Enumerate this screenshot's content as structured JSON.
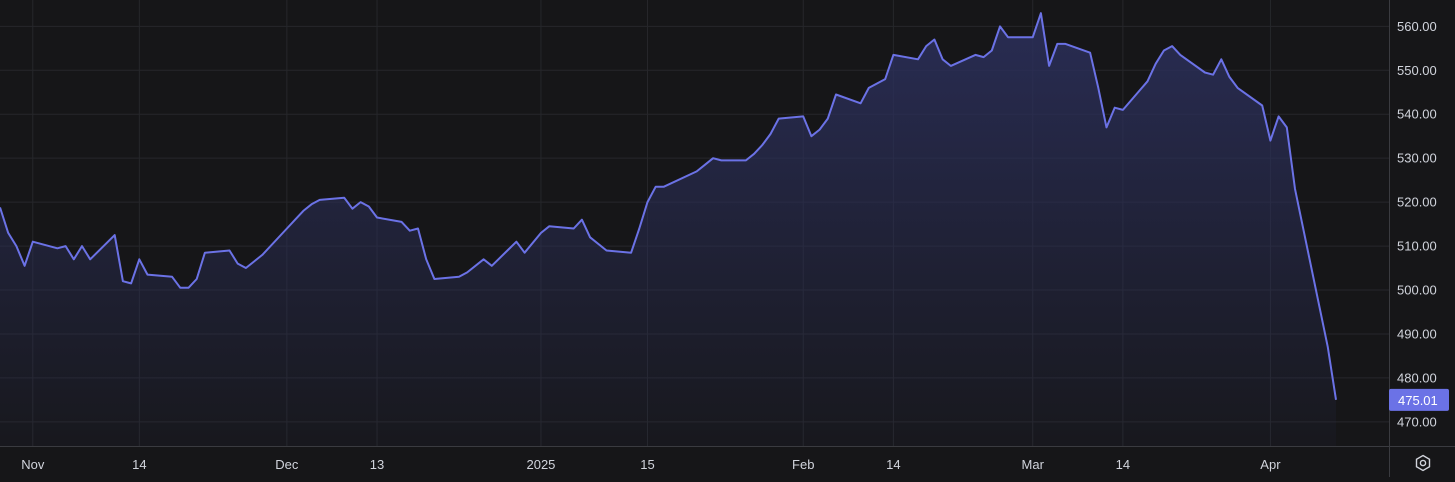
{
  "colors": {
    "background": "#161618",
    "grid": "#26272b",
    "line": "#6b72e6",
    "area_top": "#2b2f5a",
    "axis_text": "#d1d4dc",
    "last_price_badge_bg": "#6b72e6",
    "last_price_badge_text": "#ffffff"
  },
  "icons": {
    "settings": "settings-icon"
  },
  "chart_data": {
    "type": "area",
    "title": "",
    "xlabel": "",
    "ylabel": "",
    "grid": true,
    "y_axis_position": "right",
    "ylim": [
      464.5,
      566.0
    ],
    "xlim": [
      "2024-10-28",
      "2025-04-10"
    ],
    "x_tick_labels": [
      {
        "label": "Nov",
        "date": "2024-11-01"
      },
      {
        "label": "14",
        "date": "2024-11-14"
      },
      {
        "label": "Dec",
        "date": "2024-12-02"
      },
      {
        "label": "13",
        "date": "2024-12-13"
      },
      {
        "label": "2025",
        "date": "2025-01-02"
      },
      {
        "label": "15",
        "date": "2025-01-15"
      },
      {
        "label": "Feb",
        "date": "2025-02-03"
      },
      {
        "label": "14",
        "date": "2025-02-14"
      },
      {
        "label": "Mar",
        "date": "2025-03-03"
      },
      {
        "label": "14",
        "date": "2025-03-14"
      },
      {
        "label": "Apr",
        "date": "2025-04-01"
      }
    ],
    "y_tick_labels": [
      "560.00",
      "550.00",
      "540.00",
      "530.00",
      "520.00",
      "510.00",
      "500.00",
      "490.00",
      "480.00",
      "470.00"
    ],
    "y_ticks": [
      560,
      550,
      540,
      530,
      520,
      510,
      500,
      490,
      480,
      470
    ],
    "last_value_label": "475.01",
    "series": [
      {
        "points": [
          [
            "2024-10-28",
            518.8
          ],
          [
            "2024-10-29",
            513.0
          ],
          [
            "2024-10-30",
            510.0
          ],
          [
            "2024-10-31",
            505.5
          ],
          [
            "2024-11-01",
            511.0
          ],
          [
            "2024-11-04",
            509.5
          ],
          [
            "2024-11-05",
            510.0
          ],
          [
            "2024-11-06",
            507.0
          ],
          [
            "2024-11-07",
            510.0
          ],
          [
            "2024-11-08",
            507.0
          ],
          [
            "2024-11-11",
            512.5
          ],
          [
            "2024-11-12",
            502.0
          ],
          [
            "2024-11-13",
            501.5
          ],
          [
            "2024-11-14",
            507.0
          ],
          [
            "2024-11-15",
            503.5
          ],
          [
            "2024-11-18",
            503.0
          ],
          [
            "2024-11-19",
            500.5
          ],
          [
            "2024-11-20",
            500.5
          ],
          [
            "2024-11-21",
            502.5
          ],
          [
            "2024-11-22",
            508.5
          ],
          [
            "2024-11-25",
            509.0
          ],
          [
            "2024-11-26",
            506.0
          ],
          [
            "2024-11-27",
            505.0
          ],
          [
            "2024-11-29",
            508.0
          ],
          [
            "2024-12-02",
            514.0
          ],
          [
            "2024-12-03",
            516.0
          ],
          [
            "2024-12-04",
            518.0
          ],
          [
            "2024-12-05",
            519.5
          ],
          [
            "2024-12-06",
            520.5
          ],
          [
            "2024-12-09",
            521.0
          ],
          [
            "2024-12-10",
            518.5
          ],
          [
            "2024-12-11",
            520.0
          ],
          [
            "2024-12-12",
            519.0
          ],
          [
            "2024-12-13",
            516.5
          ],
          [
            "2024-12-16",
            515.5
          ],
          [
            "2024-12-17",
            513.5
          ],
          [
            "2024-12-18",
            514.0
          ],
          [
            "2024-12-19",
            507.0
          ],
          [
            "2024-12-20",
            502.5
          ],
          [
            "2024-12-23",
            503.0
          ],
          [
            "2024-12-24",
            504.0
          ],
          [
            "2024-12-26",
            507.0
          ],
          [
            "2024-12-27",
            505.5
          ],
          [
            "2024-12-30",
            511.0
          ],
          [
            "2024-12-31",
            508.5
          ],
          [
            "2025-01-02",
            513.0
          ],
          [
            "2025-01-03",
            514.5
          ],
          [
            "2025-01-06",
            514.0
          ],
          [
            "2025-01-07",
            516.0
          ],
          [
            "2025-01-08",
            512.0
          ],
          [
            "2025-01-10",
            509.0
          ],
          [
            "2025-01-13",
            508.5
          ],
          [
            "2025-01-14",
            514.0
          ],
          [
            "2025-01-15",
            520.0
          ],
          [
            "2025-01-16",
            523.5
          ],
          [
            "2025-01-17",
            523.5
          ],
          [
            "2025-01-21",
            527.0
          ],
          [
            "2025-01-22",
            528.5
          ],
          [
            "2025-01-23",
            530.0
          ],
          [
            "2025-01-24",
            529.5
          ],
          [
            "2025-01-27",
            529.5
          ],
          [
            "2025-01-28",
            531.0
          ],
          [
            "2025-01-29",
            533.0
          ],
          [
            "2025-01-30",
            535.5
          ],
          [
            "2025-01-31",
            539.0
          ],
          [
            "2025-02-03",
            539.5
          ],
          [
            "2025-02-04",
            535.0
          ],
          [
            "2025-02-05",
            536.5
          ],
          [
            "2025-02-06",
            539.0
          ],
          [
            "2025-02-07",
            544.5
          ],
          [
            "2025-02-10",
            542.5
          ],
          [
            "2025-02-11",
            546.0
          ],
          [
            "2025-02-12",
            547.0
          ],
          [
            "2025-02-13",
            548.0
          ],
          [
            "2025-02-14",
            553.5
          ],
          [
            "2025-02-17",
            552.5
          ],
          [
            "2025-02-18",
            555.5
          ],
          [
            "2025-02-19",
            557.0
          ],
          [
            "2025-02-20",
            552.5
          ],
          [
            "2025-02-21",
            551.0
          ],
          [
            "2025-02-24",
            553.5
          ],
          [
            "2025-02-25",
            553.0
          ],
          [
            "2025-02-26",
            554.5
          ],
          [
            "2025-02-27",
            560.0
          ],
          [
            "2025-02-28",
            557.5
          ],
          [
            "2025-03-03",
            557.5
          ],
          [
            "2025-03-04",
            563.0
          ],
          [
            "2025-03-05",
            551.0
          ],
          [
            "2025-03-06",
            556.0
          ],
          [
            "2025-03-07",
            556.0
          ],
          [
            "2025-03-10",
            554.0
          ],
          [
            "2025-03-11",
            546.0
          ],
          [
            "2025-03-12",
            537.0
          ],
          [
            "2025-03-13",
            541.5
          ],
          [
            "2025-03-14",
            541.0
          ],
          [
            "2025-03-17",
            547.5
          ],
          [
            "2025-03-18",
            551.5
          ],
          [
            "2025-03-19",
            554.5
          ],
          [
            "2025-03-20",
            555.5
          ],
          [
            "2025-03-21",
            553.5
          ],
          [
            "2025-03-24",
            549.5
          ],
          [
            "2025-03-25",
            549.0
          ],
          [
            "2025-03-26",
            552.5
          ],
          [
            "2025-03-27",
            548.5
          ],
          [
            "2025-03-28",
            546.0
          ],
          [
            "2025-03-31",
            542.0
          ],
          [
            "2025-04-01",
            534.0
          ],
          [
            "2025-04-02",
            539.5
          ],
          [
            "2025-04-03",
            537.0
          ],
          [
            "2025-04-04",
            523.0
          ],
          [
            "2025-04-07",
            496.0
          ],
          [
            "2025-04-08",
            487.0
          ],
          [
            "2025-04-09",
            475.01
          ]
        ]
      }
    ]
  }
}
